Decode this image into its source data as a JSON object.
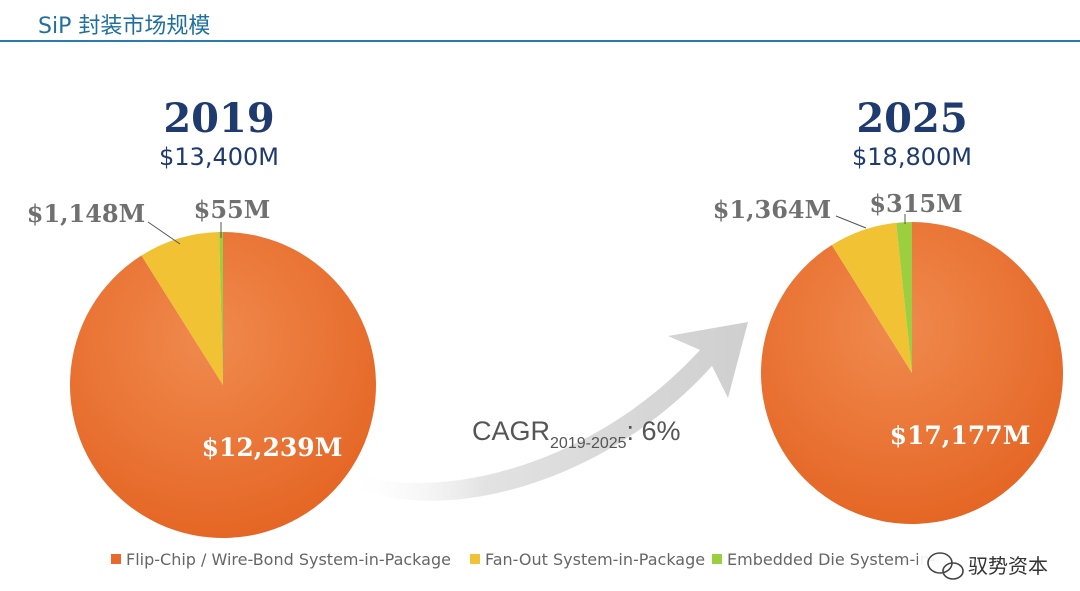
{
  "page_title": "SiP 封装市场规模",
  "watermark": "驭势资本",
  "colors": {
    "flip_chip": "#e8682e",
    "fan_out": "#f0c234",
    "embedded": "#9ccf3f",
    "title_blue": "#1f6f9f",
    "heading_navy": "#1e3a6e",
    "arrow_gray": "#d6d6d6"
  },
  "cagr": {
    "prefix": "CAGR",
    "subscript": "2019-2025",
    "suffix": ": 6%"
  },
  "chart_data": [
    {
      "type": "pie",
      "title": "2019",
      "subtitle": "$13,400M",
      "slices": [
        {
          "name": "Flip-Chip / Wire-Bond System-in-Package",
          "value": 12239,
          "label": "$12,239M"
        },
        {
          "name": "Fan-Out System-in-Package",
          "value": 1148,
          "label": "$1,148M"
        },
        {
          "name": "Embedded Die System-in-Package",
          "value": 55,
          "label": "$55M"
        }
      ]
    },
    {
      "type": "pie",
      "title": "2025",
      "subtitle": "$18,800M",
      "slices": [
        {
          "name": "Flip-Chip / Wire-Bond System-in-Package",
          "value": 17177,
          "label": "$17,177M"
        },
        {
          "name": "Fan-Out System-in-Package",
          "value": 1364,
          "label": "$1,364M"
        },
        {
          "name": "Embedded Die System-in-Package",
          "value": 315,
          "label": "$315M"
        }
      ]
    }
  ],
  "legend": [
    {
      "label": "Flip-Chip / Wire-Bond System-in-Package",
      "color": "#e8682e"
    },
    {
      "label": "Fan-Out System-in-Package",
      "color": "#f0c234"
    },
    {
      "label": "Embedded Die System-in-",
      "color": "#9ccf3f"
    }
  ]
}
